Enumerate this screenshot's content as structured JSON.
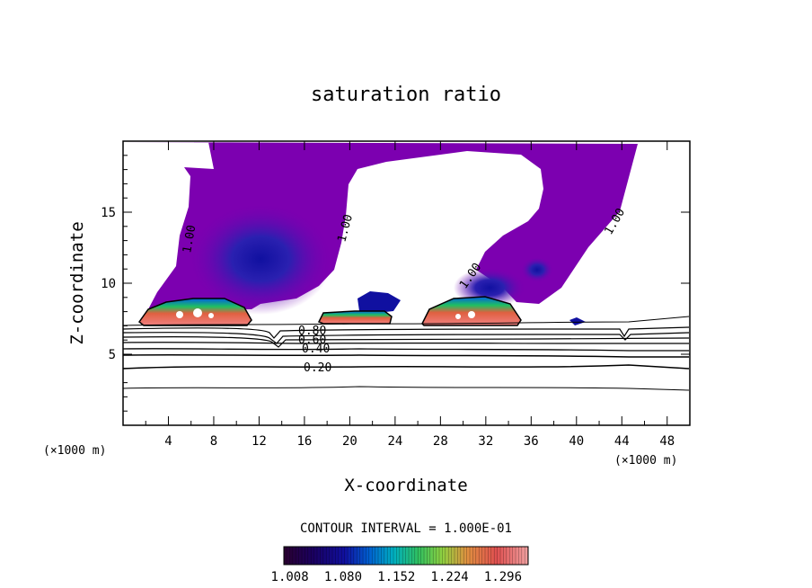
{
  "chart_data": {
    "type": "heatmap",
    "title": "saturation ratio",
    "xlabel": "X-coordinate",
    "ylabel": "Z-coordinate",
    "x_unit": "(×1000 m)",
    "x_unit_right": "(×1000 m)",
    "xlim": [
      0,
      50
    ],
    "ylim": [
      0,
      20
    ],
    "x_ticks": [
      "4",
      "8",
      "12",
      "16",
      "20",
      "24",
      "28",
      "32",
      "36",
      "40",
      "44",
      "48"
    ],
    "y_ticks": [
      "5",
      "10",
      "15"
    ],
    "contour_interval_label": "CONTOUR INTERVAL = 1.000E-01",
    "contour_labels": [
      "1.00",
      "1.00",
      "1.00",
      "1.00",
      "0.80",
      "0.60",
      "0.40",
      "0.20"
    ],
    "colorbar": {
      "ticks": [
        "1.008",
        "1.080",
        "1.152",
        "1.224",
        "1.296"
      ],
      "range": [
        1.0,
        1.33
      ],
      "colors": [
        "#2a0030",
        "#1a0060",
        "#1010a0",
        "#0050d0",
        "#0090e0",
        "#00c0c0",
        "#20c080",
        "#50d050",
        "#90d040",
        "#d0c040",
        "#e08040",
        "#e05050",
        "#f08080",
        "#f0a0a0"
      ]
    }
  }
}
